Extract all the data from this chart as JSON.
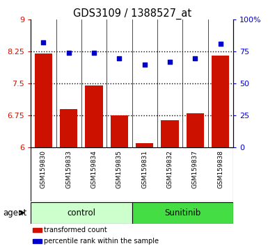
{
  "title": "GDS3109 / 1388527_at",
  "samples": [
    "GSM159830",
    "GSM159833",
    "GSM159834",
    "GSM159835",
    "GSM159831",
    "GSM159832",
    "GSM159837",
    "GSM159838"
  ],
  "bar_values": [
    8.2,
    6.9,
    7.45,
    6.75,
    6.1,
    6.65,
    6.8,
    8.15
  ],
  "dot_values": [
    82,
    74,
    74,
    70,
    65,
    67,
    70,
    81
  ],
  "groups": [
    {
      "label": "control",
      "start": 0,
      "end": 4,
      "color": "#ccffcc"
    },
    {
      "label": "Sunitinib",
      "start": 4,
      "end": 8,
      "color": "#44dd44"
    }
  ],
  "bar_color": "#cc1100",
  "dot_color": "#0000cc",
  "ylim_left": [
    6,
    9
  ],
  "ylim_right": [
    0,
    100
  ],
  "yticks_left": [
    6,
    6.75,
    7.5,
    8.25,
    9
  ],
  "yticks_right": [
    0,
    25,
    50,
    75,
    100
  ],
  "ytick_labels_left": [
    "6",
    "6.75",
    "7.5",
    "8.25",
    "9"
  ],
  "ytick_labels_right": [
    "0",
    "25",
    "50",
    "75",
    "100%"
  ],
  "hlines": [
    6.75,
    7.5,
    8.25
  ],
  "bar_width": 0.7,
  "agent_label": "agent",
  "legend_items": [
    {
      "color": "#cc1100",
      "label": "transformed count"
    },
    {
      "color": "#0000cc",
      "label": "percentile rank within the sample"
    }
  ],
  "background_color": "#ffffff",
  "plot_bg_color": "#ffffff",
  "tick_label_color_left": "#cc1100",
  "tick_label_color_right": "#0000cc",
  "label_bg_color": "#cccccc",
  "label_sep_color": "#ffffff"
}
